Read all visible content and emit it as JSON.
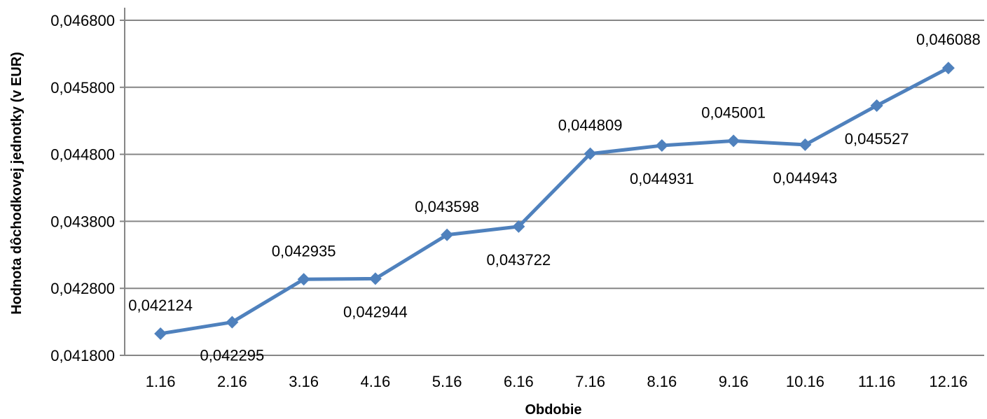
{
  "chart_data": {
    "type": "line",
    "title": "",
    "xlabel": "Obdobie",
    "ylabel": "Hodnota dôchodkovej jednotky (v EUR)",
    "categories": [
      "1.16",
      "2.16",
      "3.16",
      "4.16",
      "5.16",
      "6.16",
      "7.16",
      "8.16",
      "9.16",
      "10.16",
      "11.16",
      "12.16"
    ],
    "series": [
      {
        "values": [
          0.042124,
          0.042295,
          0.042935,
          0.042944,
          0.043598,
          0.043722,
          0.044809,
          0.044931,
          0.045001,
          0.044943,
          0.045527,
          0.046088
        ],
        "data_labels": [
          "0,042124",
          "0,042295",
          "0,042935",
          "0,042944",
          "0,043598",
          "0,043722",
          "0,044809",
          "0,044931",
          "0,045001",
          "0,044943",
          "0,045527",
          "0,046088"
        ],
        "label_positions": [
          "above",
          "below",
          "above",
          "below",
          "above",
          "below",
          "above",
          "below",
          "above",
          "below",
          "below",
          "above"
        ],
        "color": "#4f81bd"
      }
    ],
    "ylim": [
      0.0418,
      0.0468
    ],
    "yticks": [
      0.0418,
      0.0428,
      0.0438,
      0.0448,
      0.0458,
      0.0468
    ],
    "ytick_labels": [
      "0,041800",
      "0,042800",
      "0,043800",
      "0,044800",
      "0,045800",
      "0,046800"
    ],
    "grid": true,
    "gridline_color": "#868686",
    "legend": "none"
  }
}
